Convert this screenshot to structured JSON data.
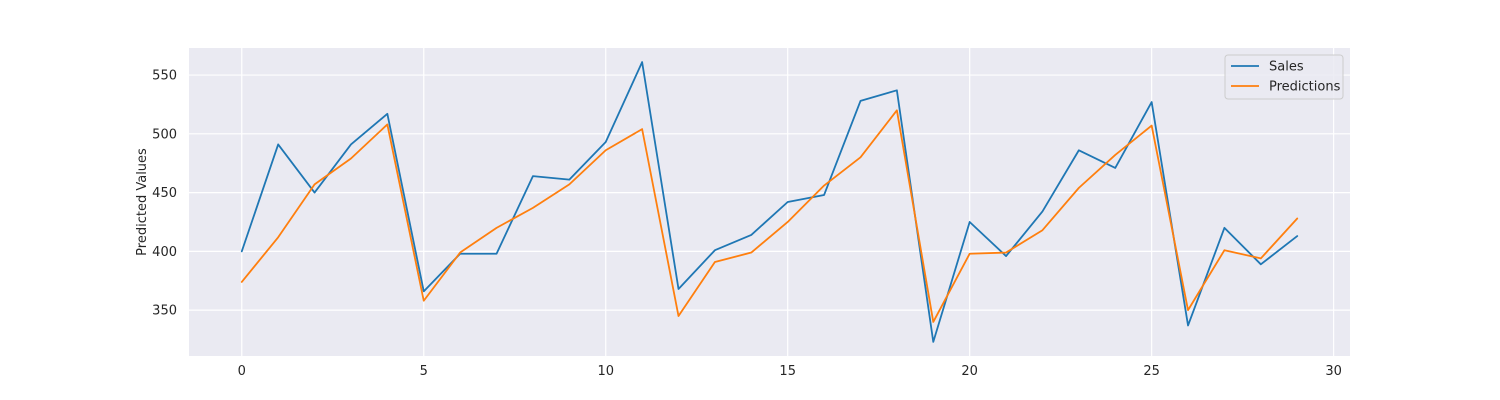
{
  "chart_data": {
    "type": "line",
    "title": "",
    "xlabel": "",
    "ylabel": "Predicted Values",
    "xlim": [
      -1.45,
      30.45
    ],
    "ylim": [
      311,
      573
    ],
    "xticks": [
      0,
      5,
      10,
      15,
      20,
      25,
      30
    ],
    "yticks": [
      350,
      400,
      450,
      500,
      550
    ],
    "grid": true,
    "legend_position": "top-right",
    "x": [
      0,
      1,
      2,
      3,
      4,
      5,
      6,
      7,
      8,
      9,
      10,
      11,
      12,
      13,
      14,
      15,
      16,
      17,
      18,
      19,
      20,
      21,
      22,
      23,
      24,
      25,
      26,
      27,
      28,
      29
    ],
    "series": [
      {
        "name": "Sales",
        "color": "#1f77b4",
        "values": [
          400,
          491,
          450,
          491,
          517,
          366,
          398,
          398,
          464,
          461,
          493,
          561,
          368,
          401,
          414,
          442,
          448,
          528,
          537,
          323,
          425,
          396,
          434,
          486,
          471,
          527,
          337,
          420,
          389,
          413
        ]
      },
      {
        "name": "Predictions",
        "color": "#ff7f0e",
        "values": [
          374,
          412,
          457,
          479,
          508,
          358,
          399,
          420,
          437,
          457,
          486,
          504,
          345,
          391,
          399,
          425,
          456,
          480,
          520,
          340,
          398,
          399,
          418,
          454,
          482,
          507,
          350,
          401,
          394,
          428
        ]
      }
    ]
  }
}
